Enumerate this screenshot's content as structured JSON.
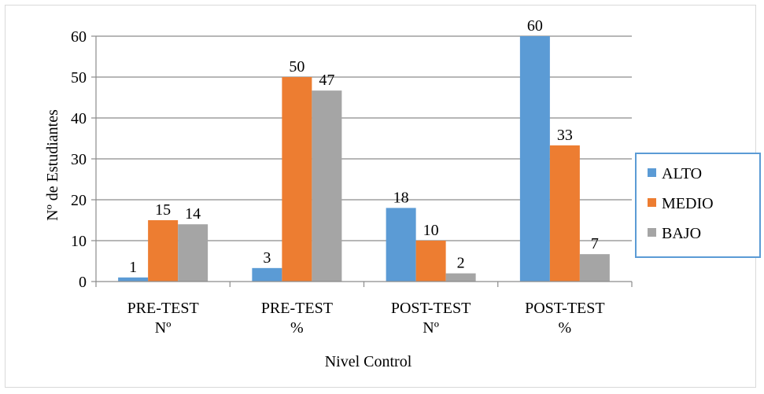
{
  "chart_data": {
    "type": "bar",
    "title": "",
    "xlabel": "Nivel Control",
    "ylabel": "Nº de Estudiantes",
    "ylim": [
      0,
      60
    ],
    "yticks": [
      0,
      10,
      20,
      30,
      40,
      50,
      60
    ],
    "grid": true,
    "legend_position": "right",
    "categories": [
      [
        "PRE-TEST",
        "Nº"
      ],
      [
        "PRE-TEST",
        "%"
      ],
      [
        "POST-TEST",
        "Nº"
      ],
      [
        "POST-TEST",
        "%"
      ]
    ],
    "series": [
      {
        "name": "ALTO",
        "color": "#5b9bd5",
        "values": [
          1,
          3.3,
          18,
          60
        ],
        "labels": [
          "1",
          "3",
          "18",
          "60"
        ]
      },
      {
        "name": "MEDIO",
        "color": "#ed7d31",
        "values": [
          15,
          50,
          10,
          33.3
        ],
        "labels": [
          "15",
          "50",
          "10",
          "33"
        ]
      },
      {
        "name": "BAJO",
        "color": "#a5a5a5",
        "values": [
          14,
          46.7,
          2,
          6.7
        ],
        "labels": [
          "14",
          "47",
          "2",
          "7"
        ]
      }
    ]
  }
}
